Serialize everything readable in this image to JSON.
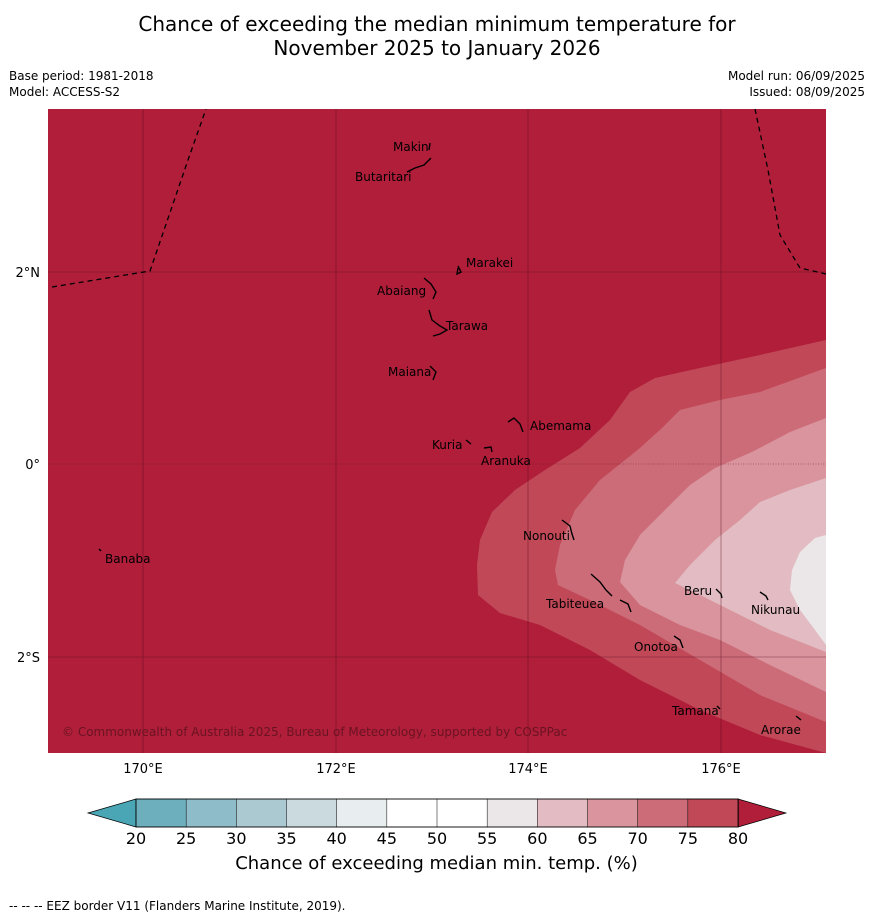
{
  "title_line1": "Chance of exceeding the median minimum temperature for",
  "title_line2": "November 2025 to January 2026",
  "base_period": "Base period: 1981-2018",
  "model": "Model: ACCESS-S2",
  "model_run": "Model run: 06/09/2025",
  "issued": "Issued: 08/09/2025",
  "copyright": "© Commonwealth of Australia 2025, Bureau of Meteorology, supported by COSPPac",
  "footnote": "--  --  -- EEZ border V11 (Flanders Marine Institute, 2019).",
  "colorbar": {
    "title": "Chance of exceeding median min. temp. (%)",
    "ticks": [
      "20",
      "25",
      "30",
      "35",
      "40",
      "45",
      "50",
      "55",
      "60",
      "65",
      "70",
      "75",
      "80"
    ],
    "colors": [
      "#6eafbe",
      "#8ebdc9",
      "#aac9d1",
      "#cbdadf",
      "#e8eef0",
      "#ffffff",
      "#ffffff",
      "#ebe7e8",
      "#e2bcc2",
      "#d9949d",
      "#cd6c79",
      "#c14957"
    ],
    "under_color": "#4aa5b5",
    "over_color": "#b01e3a"
  },
  "axes": {
    "lat_labels": [
      "2°N",
      "0°",
      "2°S"
    ],
    "lon_labels": [
      "170°E",
      "172°E",
      "174°E",
      "176°E"
    ]
  },
  "places": [
    {
      "name": "Makin"
    },
    {
      "name": "Butaritari"
    },
    {
      "name": "Marakei"
    },
    {
      "name": "Abaiang"
    },
    {
      "name": "Tarawa"
    },
    {
      "name": "Maiana"
    },
    {
      "name": "Abemama"
    },
    {
      "name": "Kuria"
    },
    {
      "name": "Aranuka"
    },
    {
      "name": "Nonouti"
    },
    {
      "name": "Banaba"
    },
    {
      "name": "Beru"
    },
    {
      "name": "Nikunau"
    },
    {
      "name": "Tabiteuea"
    },
    {
      "name": "Onotoa"
    },
    {
      "name": "Tamana"
    },
    {
      "name": "Arorae"
    }
  ]
}
